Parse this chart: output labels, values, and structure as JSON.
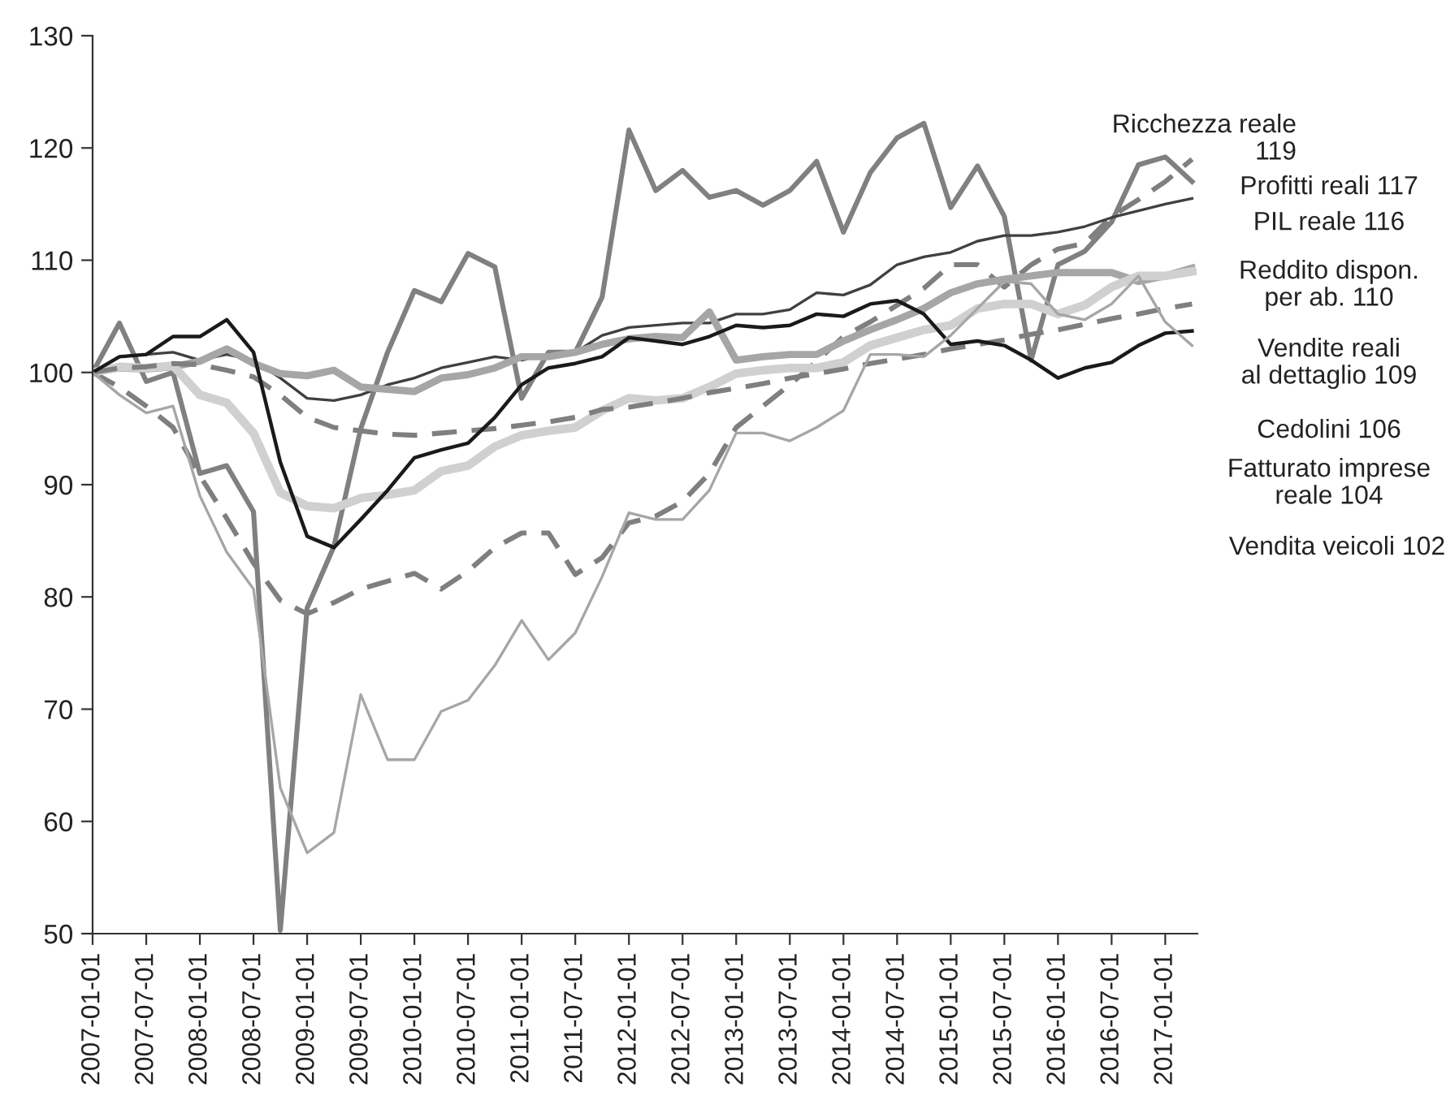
{
  "chart_data": {
    "type": "line",
    "categories": [
      "2007-01-01",
      null,
      "2007-07-01",
      null,
      "2008-01-01",
      null,
      "2008-07-01",
      null,
      "2009-01-01",
      null,
      "2009-07-01",
      null,
      "2010-01-01",
      null,
      "2010-07-01",
      null,
      "2011-01-01",
      null,
      "2011-07-01",
      null,
      "2012-01-01",
      null,
      "2012-07-01",
      null,
      "2013-01-01",
      null,
      "2013-07-01",
      null,
      "2014-01-01",
      null,
      "2014-07-01",
      null,
      "2015-01-01",
      null,
      "2015-07-01",
      null,
      "2016-01-01",
      null,
      "2016-07-01",
      null,
      "2017-01-01",
      null
    ],
    "annotations": [
      "Ricchezza reale\n119",
      "Profitti reali 117",
      "PIL reale 116",
      "Reddito dispon.\nper ab. 110",
      "Vendite reali\nal dettaglio 109",
      "Cedolini 106",
      "Fatturato imprese\nreale 104",
      "Vendita veicoli 102"
    ],
    "ylim": [
      50,
      130
    ],
    "yticks": [
      50,
      60,
      70,
      80,
      90,
      100,
      110,
      120,
      130
    ],
    "grid": false,
    "legend": false,
    "marker": "none",
    "series": [
      {
        "color": "#7f7f7f",
        "line_style": "dashed",
        "values": [
          100,
          98.7,
          97,
          95.1,
          90.8,
          87,
          83,
          79.7,
          78.5,
          79.5,
          80.7,
          81.4,
          82.1,
          80.7,
          82.3,
          84.4,
          85.7,
          85.7,
          82,
          83.5,
          86.6,
          87.2,
          88.5,
          91,
          95.1,
          97,
          98.9,
          101,
          103.2,
          104.5,
          106,
          107.5,
          109.6,
          109.6,
          107.6,
          109.6,
          111,
          111.5,
          113.9,
          115.4,
          117,
          119
        ]
      },
      {
        "color": "#808080",
        "line_style": "solid",
        "values": [
          100,
          104.4,
          99.2,
          100,
          91,
          91.7,
          87.6,
          50.3,
          79,
          84.5,
          95,
          101.8,
          107.3,
          106.3,
          110.6,
          109.4,
          97.7,
          101.8,
          101.8,
          106.7,
          121.6,
          116.2,
          118,
          115.6,
          116.2,
          114.9,
          116.2,
          118.8,
          112.5,
          117.8,
          120.9,
          122.2,
          114.7,
          118.4,
          113.9,
          101.1,
          109.6,
          110.8,
          113.4,
          118.5,
          119.2,
          117
        ]
      },
      {
        "color": "#404040",
        "line_style": "solid",
        "values": [
          100,
          101.4,
          101.6,
          101.8,
          101.1,
          101.6,
          101.1,
          99.5,
          97.7,
          97.5,
          98,
          98.9,
          99.5,
          100.4,
          100.9,
          101.4,
          101.1,
          101.6,
          101.8,
          103.3,
          104,
          104.2,
          104.4,
          104.4,
          105.2,
          105.2,
          105.6,
          107.1,
          106.9,
          107.8,
          109.6,
          110.3,
          110.7,
          111.7,
          112.2,
          112.2,
          112.5,
          113,
          113.8,
          114.4,
          115,
          115.5
        ]
      },
      {
        "color": "#a6a6a6",
        "line_style": "solid",
        "values": [
          100,
          100.4,
          100.3,
          100.5,
          101,
          102.1,
          100.8,
          99.9,
          99.7,
          100.2,
          98.7,
          98.5,
          98.3,
          99.5,
          99.8,
          100.4,
          101.4,
          101.4,
          101.8,
          102.5,
          103,
          103.2,
          103.1,
          105.4,
          101.1,
          101.4,
          101.6,
          101.6,
          102.8,
          103.8,
          104.7,
          105.7,
          107.1,
          107.9,
          108.3,
          108.6,
          108.9,
          108.9,
          108.9,
          108.1,
          108.6,
          109.3
        ]
      },
      {
        "color": "#d0d0d0",
        "line_style": "solid",
        "values": [
          100,
          100.5,
          100.4,
          100.6,
          98,
          97.3,
          94.6,
          89.3,
          88.1,
          87.9,
          88.8,
          89.1,
          89.5,
          91.2,
          91.7,
          93.4,
          94.4,
          94.8,
          95.1,
          96.6,
          97.7,
          97.5,
          97.7,
          98.7,
          99.9,
          100.2,
          100.4,
          100.4,
          100.9,
          102.4,
          103.1,
          103.8,
          104.2,
          105.7,
          106.1,
          106.1,
          105.2,
          106,
          107.6,
          108.6,
          108.6,
          109
        ]
      },
      {
        "color": "#7f7f7f",
        "line_style": "dashed",
        "values": [
          100,
          100.4,
          100.5,
          100.8,
          100.7,
          100.2,
          99.6,
          98,
          96,
          95.1,
          94.8,
          94.5,
          94.4,
          94.6,
          94.8,
          95,
          95.3,
          95.6,
          96,
          96.7,
          96.9,
          97.3,
          97.7,
          98.2,
          98.6,
          99,
          99.5,
          99.9,
          100.3,
          100.8,
          101.2,
          101.6,
          102.1,
          102.5,
          102.9,
          103.4,
          103.8,
          104.3,
          104.8,
          105.2,
          105.7,
          106.1
        ]
      },
      {
        "color": "#1a1a1a",
        "line_style": "solid",
        "values": [
          100,
          101.4,
          101.6,
          103.2,
          103.2,
          104.7,
          101.8,
          92,
          85.4,
          84.4,
          86.9,
          89.5,
          92.4,
          93.1,
          93.7,
          96,
          98.9,
          100.4,
          100.8,
          101.4,
          103.1,
          102.8,
          102.5,
          103.2,
          104.2,
          104,
          104.2,
          105.2,
          105,
          106.1,
          106.4,
          105.2,
          102.5,
          102.8,
          102.4,
          101.1,
          99.5,
          100.4,
          100.9,
          102.4,
          103.5,
          103.7
        ]
      },
      {
        "color": "#a6a6a6",
        "line_style": "solid",
        "values": [
          100,
          98,
          96.4,
          97,
          89,
          84,
          80.7,
          63,
          57.2,
          59,
          71.3,
          65.5,
          65.5,
          69.8,
          70.8,
          73.9,
          77.9,
          74.4,
          76.8,
          81.8,
          87.5,
          86.9,
          86.9,
          89.5,
          94.6,
          94.6,
          93.9,
          95.1,
          96.6,
          101.6,
          101.6,
          101.4,
          103.3,
          105.7,
          108.1,
          107.9,
          105.2,
          104.7,
          106.1,
          108.6,
          104.5,
          102.4
        ]
      }
    ]
  }
}
